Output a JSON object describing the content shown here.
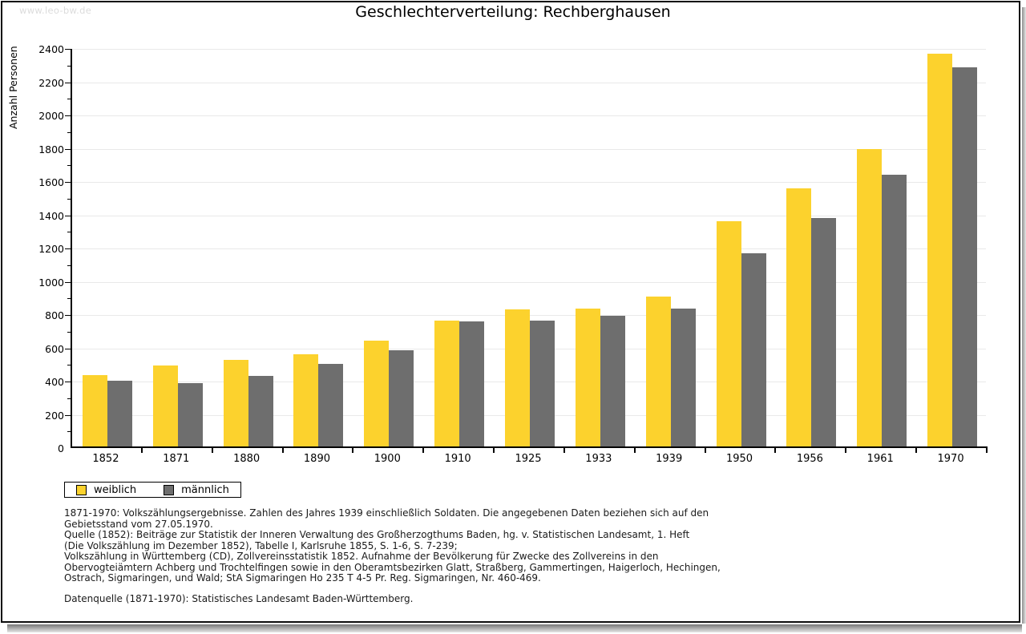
{
  "watermark": "www.leo-bw.de",
  "title": "Geschlechterverteilung: Rechberghausen",
  "chart_data": {
    "type": "bar",
    "title": "Geschlechterverteilung: Rechberghausen",
    "xlabel": "",
    "ylabel": "Anzahl Personen",
    "ylim": [
      0,
      2400
    ],
    "ytick_major_step": 200,
    "ytick_minor_step": 100,
    "grid": true,
    "legend_position": "bottom-left",
    "categories": [
      "1852",
      "1871",
      "1880",
      "1890",
      "1900",
      "1910",
      "1925",
      "1933",
      "1939",
      "1950",
      "1956",
      "1961",
      "1970"
    ],
    "series": [
      {
        "name": "weiblich",
        "color": "#FCD22D",
        "values": [
          430,
          485,
          520,
          555,
          635,
          755,
          825,
          830,
          900,
          1355,
          1550,
          1790,
          2360
        ]
      },
      {
        "name": "männlich",
        "color": "#6E6E6E",
        "values": [
          395,
          380,
          425,
          495,
          580,
          750,
          755,
          785,
          830,
          1160,
          1375,
          1635,
          2280
        ]
      }
    ]
  },
  "legend": {
    "items": [
      {
        "label": "weiblich",
        "color": "#FCD22D"
      },
      {
        "label": "männlich",
        "color": "#6E6E6E"
      }
    ]
  },
  "footnote_lines": [
    "1871-1970: Volkszählungsergebnisse. Zahlen des Jahres 1939 einschließlich Soldaten. Die angegebenen Daten beziehen sich auf den",
    "Gebietsstand vom 27.05.1970.",
    "Quelle (1852): Beiträge zur Statistik der Inneren Verwaltung des Großherzogthums Baden, hg. v. Statistischen Landesamt, 1. Heft",
    "(Die Volkszählung im Dezember 1852), Tabelle I, Karlsruhe 1855, S. 1-6, S. 7-239;",
    "Volkszählung in Württemberg (CD), Zollvereinsstatistik 1852. Aufnahme der Bevölkerung für Zwecke des Zollvereins in den",
    "Obervogteiämtern Achberg und Trochtelfingen sowie in den Oberamtsbezirken Glatt, Straßberg, Gammertingen, Haigerloch, Hechingen,",
    "Ostrach, Sigmaringen, und Wald; StA Sigmaringen Ho 235 T 4-5 Pr. Reg. Sigmaringen, Nr. 460-469."
  ],
  "datasource": "Datenquelle (1871-1970): Statistisches Landesamt Baden-Württemberg.",
  "colors": {
    "weiblich": "#FCD22D",
    "männlich": "#6E6E6E",
    "grid": "#e9e9e9",
    "axis": "#000000",
    "watermark": "#dcdcdc"
  }
}
